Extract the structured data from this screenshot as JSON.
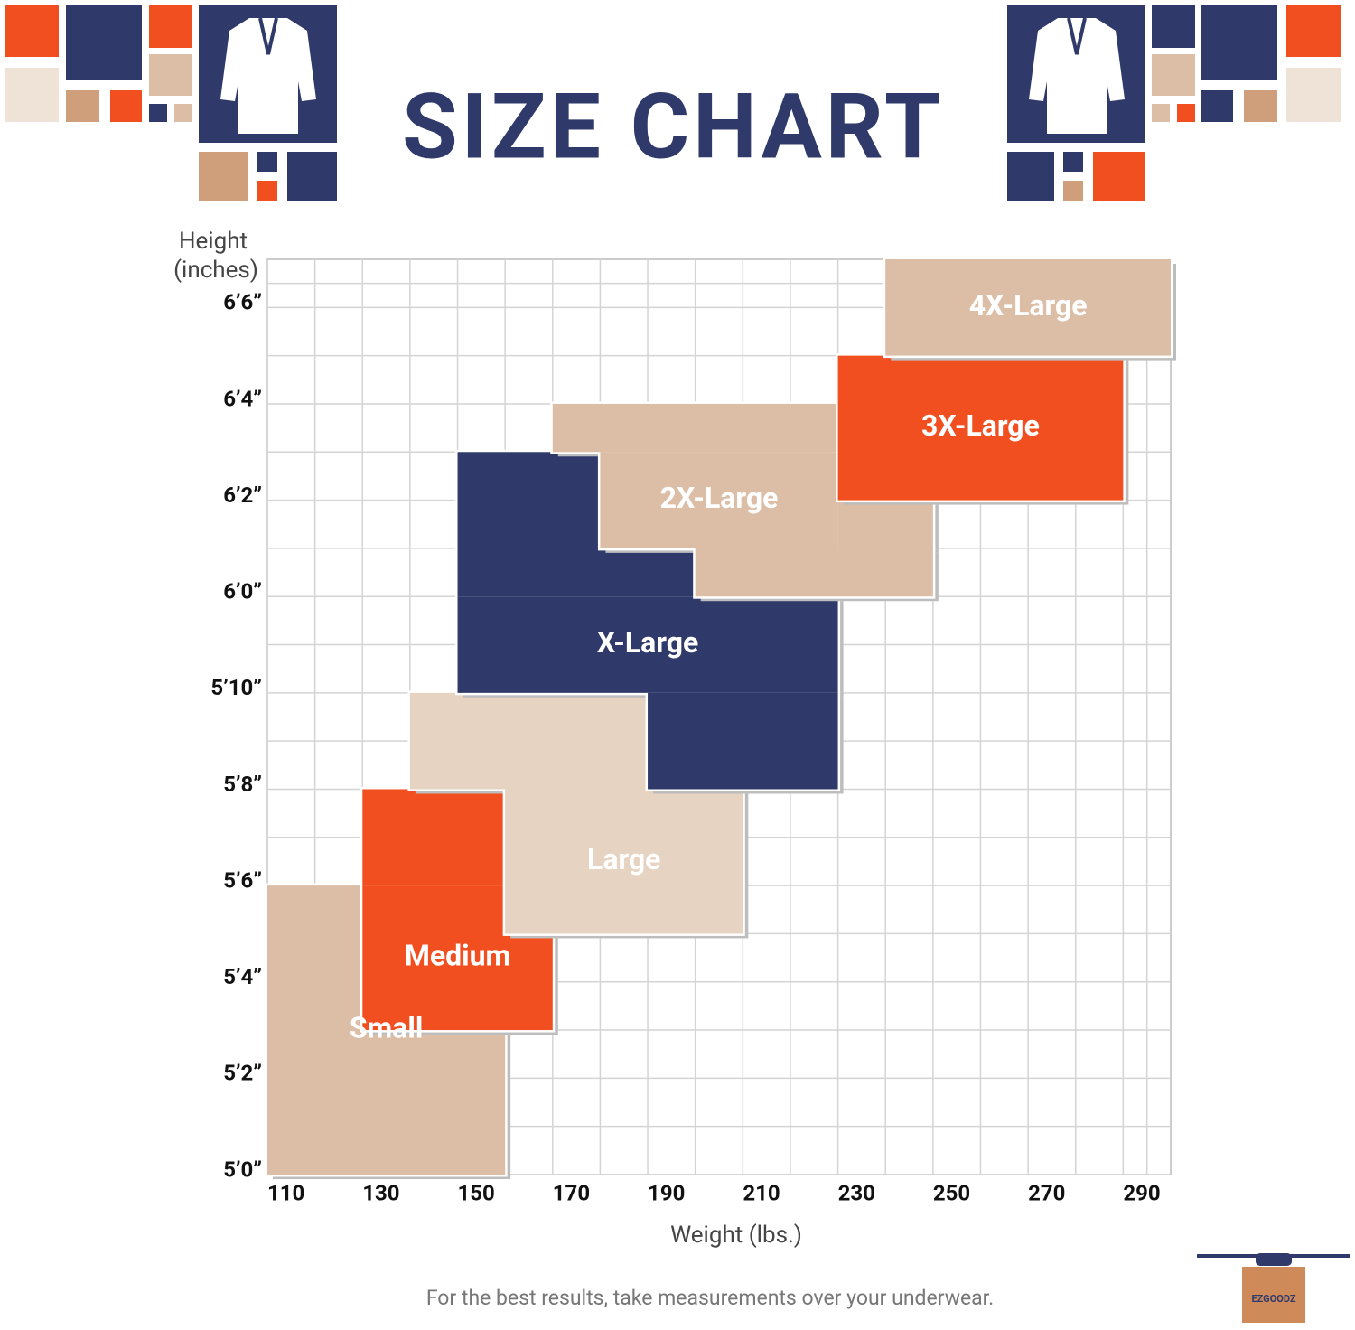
{
  "chart_data": {
    "type": "region",
    "title": "SIZE CHART",
    "ylabel": [
      "Height",
      "(inches)"
    ],
    "xlabel": "Weight (lbs.)",
    "note": "For the best results, take measurements over your underwear.",
    "logo": "EZGOODZ",
    "xlim": [
      110,
      300
    ],
    "xticks": [
      110,
      130,
      150,
      170,
      190,
      210,
      230,
      250,
      270,
      290
    ],
    "ylim": [
      60,
      79
    ],
    "yticks": [
      {
        "value": 60,
        "label": "5’0”"
      },
      {
        "value": 62,
        "label": "5’2”"
      },
      {
        "value": 64,
        "label": "5’4”"
      },
      {
        "value": 66,
        "label": "5’6”"
      },
      {
        "value": 68,
        "label": "5’8”"
      },
      {
        "value": 70,
        "label": "5’10”"
      },
      {
        "value": 72,
        "label": "6’0”"
      },
      {
        "value": 74,
        "label": "6’2”"
      },
      {
        "value": 76,
        "label": "6’4”"
      },
      {
        "value": 78,
        "label": "6’6”"
      }
    ],
    "grid": true,
    "series": [
      {
        "name": "Small",
        "color": "#dcbda6",
        "rects": [
          {
            "x": [
              110,
              160
            ],
            "y": [
              60,
              66
            ]
          }
        ]
      },
      {
        "name": "Medium",
        "color": "#f24f20",
        "rects": [
          {
            "x": [
              130,
              170
            ],
            "y": [
              63,
              66
            ]
          },
          {
            "x": [
              130,
              160
            ],
            "y": [
              66,
              68
            ]
          }
        ]
      },
      {
        "name": "Large",
        "color": "#e6d3c1",
        "rects": [
          {
            "x": [
              160,
              210
            ],
            "y": [
              65,
              68
            ]
          },
          {
            "x": [
              140,
              190
            ],
            "y": [
              68,
              70
            ]
          }
        ]
      },
      {
        "name": "X-Large",
        "color": "#2f3a6b",
        "rects": [
          {
            "x": [
              150,
              180
            ],
            "y": [
              73,
              75
            ]
          },
          {
            "x": [
              150,
              200
            ],
            "y": [
              72,
              73
            ]
          },
          {
            "x": [
              150,
              230
            ],
            "y": [
              70,
              72
            ]
          },
          {
            "x": [
              190,
              230
            ],
            "y": [
              68,
              70
            ]
          }
        ]
      },
      {
        "name": "2X-Large",
        "color": "#dcbda6",
        "rects": [
          {
            "x": [
              170,
              230
            ],
            "y": [
              75,
              76
            ]
          },
          {
            "x": [
              180,
              230
            ],
            "y": [
              73,
              75
            ]
          },
          {
            "x": [
              200,
              250
            ],
            "y": [
              72,
              73
            ]
          },
          {
            "x": [
              230,
              250
            ],
            "y": [
              73,
              74
            ]
          }
        ]
      },
      {
        "name": "3X-Large",
        "color": "#f24f20",
        "rects": [
          {
            "x": [
              230,
              290
            ],
            "y": [
              74,
              77
            ]
          }
        ]
      },
      {
        "name": "4X-Large",
        "color": "#dcbda6",
        "rects": [
          {
            "x": [
              240,
              300
            ],
            "y": [
              77,
              79
            ]
          }
        ]
      }
    ]
  }
}
